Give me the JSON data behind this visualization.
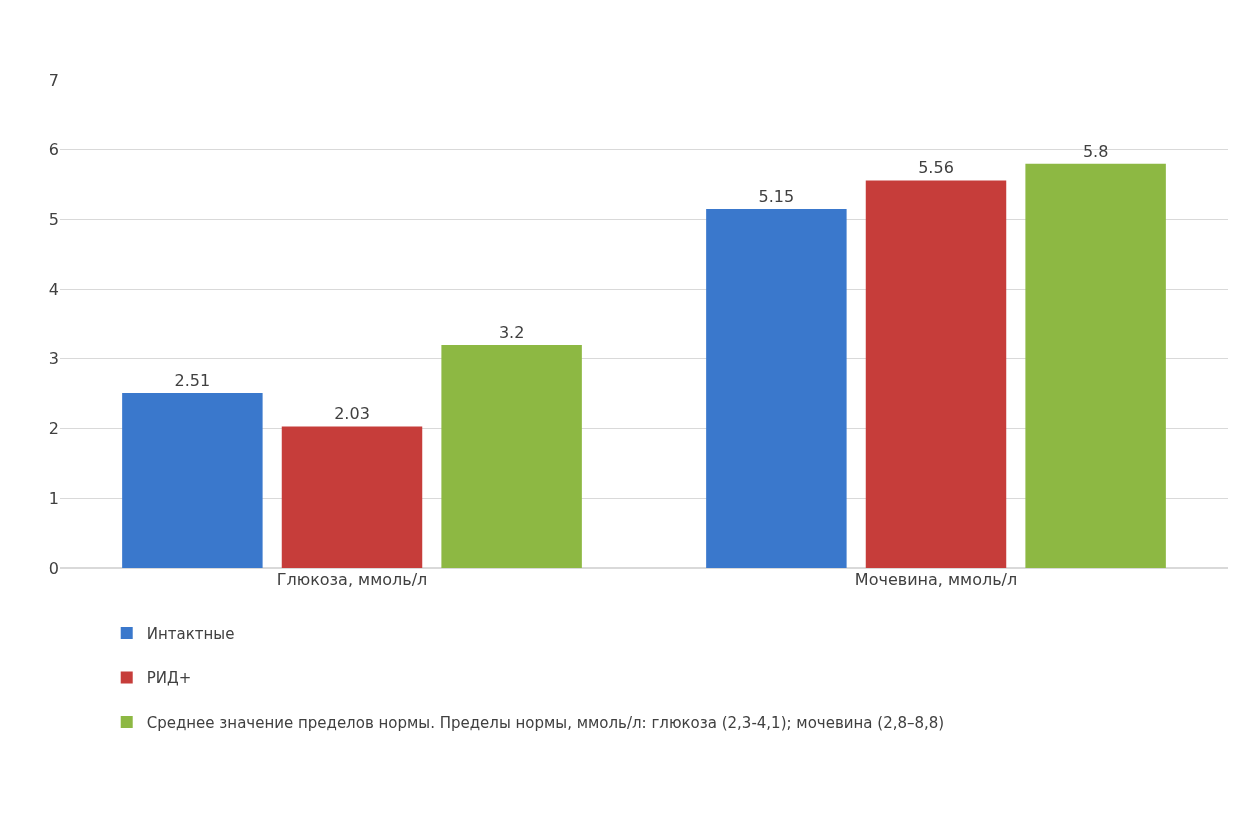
{
  "chart_data": {
    "type": "bar",
    "categories": [
      "Глюкоза, ммоль/л",
      "Мочевина, ммоль/л"
    ],
    "series": [
      {
        "name": "Интактные",
        "color": "#3a78cc",
        "values": [
          2.51,
          5.15
        ]
      },
      {
        "name": "РИД+",
        "color": "#c63d3a",
        "values": [
          2.03,
          5.56
        ]
      },
      {
        "name": "Среднее значение пределов нормы. Пределы нормы, ммоль/л: глюкоза (2,3-4,1); мочевина (2,8–8,8)",
        "color": "#8db843",
        "values": [
          3.2,
          5.8
        ]
      }
    ],
    "ylim": [
      0,
      7
    ],
    "yticks": [
      0,
      1,
      2,
      3,
      4,
      5,
      6,
      7
    ],
    "grid": "y",
    "legend": "bottom",
    "data_labels": true
  }
}
